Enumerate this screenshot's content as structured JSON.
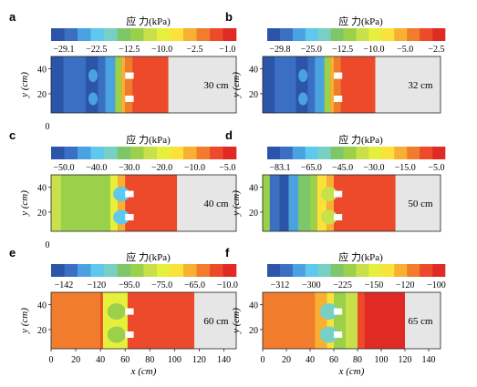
{
  "figure": {
    "legend_title": "应 力(kPa)",
    "ylabel": "y (cm)",
    "xlabel": "x (cm)",
    "x_ticks": [
      "0",
      "20",
      "40",
      "60",
      "80",
      "100",
      "120",
      "140"
    ],
    "y_ticks": [
      "20",
      "40"
    ],
    "left_zero": "0"
  },
  "colors": {
    "scale": [
      "#2b55a8",
      "#3a6fc4",
      "#4aa3e0",
      "#5ec8ee",
      "#78d0c4",
      "#7ec66a",
      "#9ad04a",
      "#c8e04a",
      "#e6f03c",
      "#fbe23a",
      "#f8b032",
      "#f07c2c",
      "#ec4a2a",
      "#e02a24"
    ],
    "empty_region": "#e6e6e6",
    "anchor": "#ffffff"
  },
  "chart_data": [
    {
      "type": "heatmap",
      "panel": "a",
      "label": "30 cm",
      "fill_extent_x": 95,
      "colorbar_ticks": [
        "−29.1",
        "−22.5",
        "−12.5",
        "−10.0",
        "−2.5",
        "−1.0"
      ]
    },
    {
      "type": "heatmap",
      "panel": "b",
      "label": "32 cm",
      "fill_extent_x": 95,
      "colorbar_ticks": [
        "−29.8",
        "−25.0",
        "−12.5",
        "−10.0",
        "−5.0",
        "−2.5"
      ]
    },
    {
      "type": "heatmap",
      "panel": "c",
      "label": "40 cm",
      "fill_extent_x": 102,
      "colorbar_ticks": [
        "−50.0",
        "−40.0",
        "−30.0",
        "−20.0",
        "−10.0",
        "−5.0"
      ]
    },
    {
      "type": "heatmap",
      "panel": "d",
      "label": "50 cm",
      "fill_extent_x": 112,
      "colorbar_ticks": [
        "−83.1",
        "−65.0",
        "−45.0",
        "−30.0",
        "−15.0",
        "−5.0"
      ]
    },
    {
      "type": "heatmap",
      "panel": "e",
      "label": "60 cm",
      "fill_extent_x": 116,
      "colorbar_ticks": [
        "−142",
        "−120",
        "−95.0",
        "−75.0",
        "−65.0",
        "−10.0"
      ]
    },
    {
      "type": "heatmap",
      "panel": "f",
      "label": "65 cm",
      "fill_extent_x": 120,
      "colorbar_ticks": [
        "−312",
        "−300",
        "−225",
        "−150",
        "−120",
        "−100"
      ]
    }
  ]
}
